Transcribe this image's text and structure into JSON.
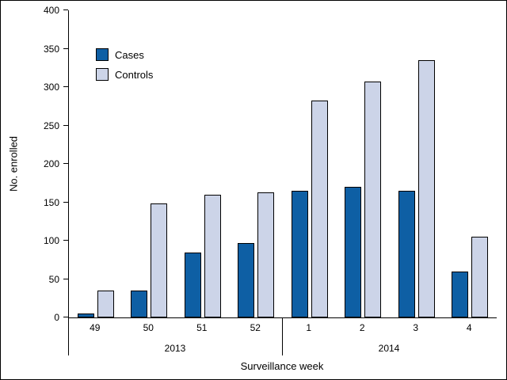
{
  "figure": {
    "background": "#ffffff",
    "border_color": "#000000"
  },
  "chart_data": {
    "type": "bar",
    "title": "",
    "xlabel": "Surveillance week",
    "ylabel": "No. enrolled",
    "ylim": [
      0,
      400
    ],
    "yticks": [
      0,
      50,
      100,
      150,
      200,
      250,
      300,
      350,
      400
    ],
    "categories": [
      "49",
      "50",
      "51",
      "52",
      "1",
      "2",
      "3",
      "4"
    ],
    "year_groups": [
      {
        "label": "2013",
        "span": 4
      },
      {
        "label": "2014",
        "span": 4
      }
    ],
    "series": [
      {
        "name": "Cases",
        "color": "#0e5fa4",
        "values": [
          5,
          35,
          85,
          97,
          165,
          170,
          165,
          60
        ]
      },
      {
        "name": "Controls",
        "color": "#ccd4e8",
        "values": [
          35,
          148,
          160,
          163,
          283,
          307,
          335,
          105
        ]
      }
    ],
    "legend_position": "top-left",
    "grid": false,
    "bar_border_color": "#000000"
  }
}
